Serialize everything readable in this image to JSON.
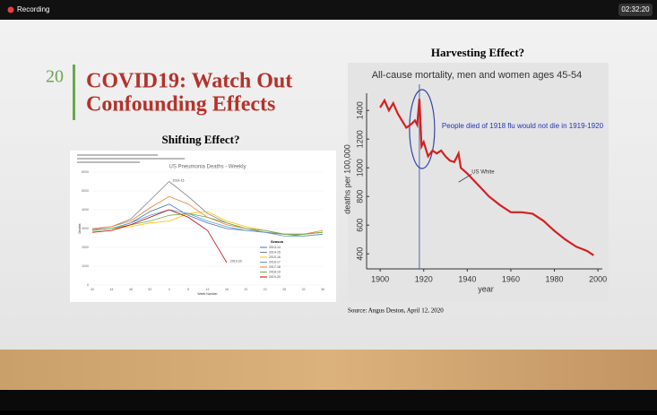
{
  "recording": {
    "label": "Recording",
    "time": "02:32:20"
  },
  "slide": {
    "number": "20",
    "title": [
      "COVID19: Watch Out",
      "Confounding Effects"
    ],
    "source": "Source: Angus Deston, April 12, 2020"
  },
  "chart_data": [
    {
      "type": "line",
      "heading": "Shifting Effect?",
      "title": "US Pneumonia Deaths - Weekly",
      "xlabel": "Week Number",
      "ylabel": "Deaths",
      "legend_title": "Season",
      "categories": [
        "40",
        "44",
        "48",
        "52",
        "4",
        "8",
        "12",
        "16",
        "20",
        "24",
        "28",
        "32",
        "36"
      ],
      "ylim": [
        0,
        6000
      ],
      "yticks": [
        0,
        1000,
        2000,
        3000,
        4000,
        5000,
        6000
      ],
      "series": [
        {
          "name": "2013-14",
          "color": "#4472c4",
          "values": [
            2900,
            3000,
            3300,
            3900,
            4300,
            3700,
            3300,
            3000,
            2900,
            2800,
            2700,
            2600,
            2700
          ]
        },
        {
          "name": "2014-15",
          "color": "#7f7f7f",
          "values": [
            2950,
            3100,
            3500,
            4500,
            5500,
            4700,
            3800,
            3300,
            3000,
            2800,
            2700,
            2700,
            2800
          ]
        },
        {
          "name": "2015-16",
          "color": "#ffc000",
          "values": [
            2900,
            3000,
            3100,
            3300,
            3400,
            3800,
            3900,
            3400,
            3100,
            2900,
            2700,
            2700,
            2800
          ]
        },
        {
          "name": "2016-17",
          "color": "#5b9bd5",
          "values": [
            2900,
            3000,
            3300,
            3700,
            4000,
            3800,
            3400,
            3100,
            2900,
            2800,
            2600,
            2600,
            2700
          ]
        },
        {
          "name": "2017-18",
          "color": "#ed7d31",
          "values": [
            3000,
            3100,
            3400,
            4100,
            4700,
            4300,
            3600,
            3200,
            3000,
            2900,
            2700,
            2700,
            2900
          ]
        },
        {
          "name": "2018-19",
          "color": "#70ad47",
          "values": [
            2900,
            3000,
            3200,
            3400,
            3700,
            3800,
            3600,
            3300,
            3000,
            2900,
            2700,
            2700,
            2800
          ]
        },
        {
          "name": "2019-20",
          "color": "#c00000",
          "values": [
            2800,
            2900,
            3200,
            3600,
            4000,
            3600,
            2900,
            1200,
            null,
            null,
            null,
            null,
            null
          ]
        }
      ],
      "annotations": [
        {
          "text": "2014-15",
          "series": 1,
          "index": 4
        },
        {
          "text": "2019-20",
          "series": 6,
          "index": 7
        }
      ]
    },
    {
      "type": "line",
      "heading": "Harvesting Effect?",
      "title": "All-cause mortality, men and women ages 45-54",
      "xlabel": "year",
      "ylabel": "deaths per 100,000",
      "x": [
        1900,
        1902,
        1904,
        1906,
        1908,
        1910,
        1912,
        1914,
        1916,
        1917,
        1918,
        1919,
        1920,
        1922,
        1924,
        1926,
        1928,
        1930,
        1932,
        1934,
        1936,
        1937,
        1940,
        1945,
        1950,
        1955,
        1960,
        1965,
        1970,
        1975,
        1980,
        1985,
        1990,
        1995,
        1998
      ],
      "xlim": [
        1895,
        2002
      ],
      "xticks": [
        1900,
        1920,
        1940,
        1960,
        1980,
        2000
      ],
      "ylim": [
        320,
        1520
      ],
      "yticks": [
        400,
        600,
        800,
        1000,
        1200,
        1400
      ],
      "series": [
        {
          "name": "US White",
          "color": "#d42020",
          "values": [
            1420,
            1470,
            1400,
            1450,
            1380,
            1330,
            1280,
            1300,
            1330,
            1300,
            1480,
            1150,
            1180,
            1080,
            1120,
            1100,
            1120,
            1080,
            1050,
            1040,
            1100,
            1000,
            960,
            880,
            800,
            740,
            690,
            690,
            680,
            630,
            560,
            500,
            450,
            420,
            390
          ]
        }
      ],
      "marker_x": 1918,
      "annotations": [
        {
          "text": "People died of 1918 flu would not die in 1919-1920"
        },
        {
          "text": "US White"
        }
      ]
    }
  ]
}
